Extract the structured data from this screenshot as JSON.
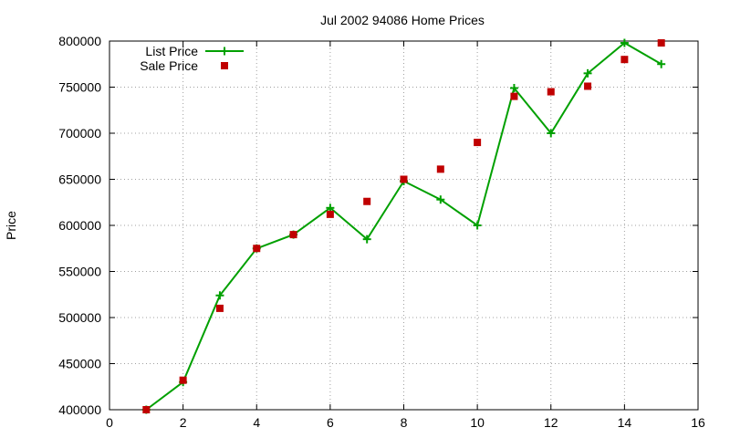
{
  "chart_data": {
    "type": "line",
    "title": "Jul 2002 94086 Home Prices",
    "xlabel": "",
    "ylabel": "Price",
    "xlim": [
      0,
      16
    ],
    "ylim": [
      400000,
      800000
    ],
    "x_ticks": [
      "0",
      "2",
      "4",
      "6",
      "8",
      "10",
      "12",
      "14",
      "16"
    ],
    "y_ticks": [
      "400000",
      "450000",
      "500000",
      "550000",
      "600000",
      "650000",
      "700000",
      "750000",
      "800000"
    ],
    "grid": true,
    "legend_position": "top-left",
    "series": [
      {
        "name": "List Price",
        "style": "line-with-plus-markers",
        "color": "#00a000",
        "x": [
          1,
          2,
          3,
          4,
          5,
          6,
          7,
          8,
          9,
          10,
          11,
          12,
          13,
          14,
          15
        ],
        "y": [
          400000,
          430000,
          524000,
          575000,
          590000,
          619000,
          585000,
          648000,
          628000,
          600000,
          749000,
          700000,
          765000,
          798000,
          775000
        ]
      },
      {
        "name": "Sale Price",
        "style": "square-markers",
        "color": "#c00000",
        "x": [
          1,
          2,
          3,
          4,
          5,
          6,
          7,
          8,
          9,
          10,
          11,
          12,
          13,
          14,
          15
        ],
        "y": [
          400000,
          432000,
          510000,
          575000,
          590000,
          612000,
          626000,
          650000,
          661000,
          690000,
          740000,
          745000,
          751000,
          780000,
          798000
        ]
      }
    ]
  }
}
